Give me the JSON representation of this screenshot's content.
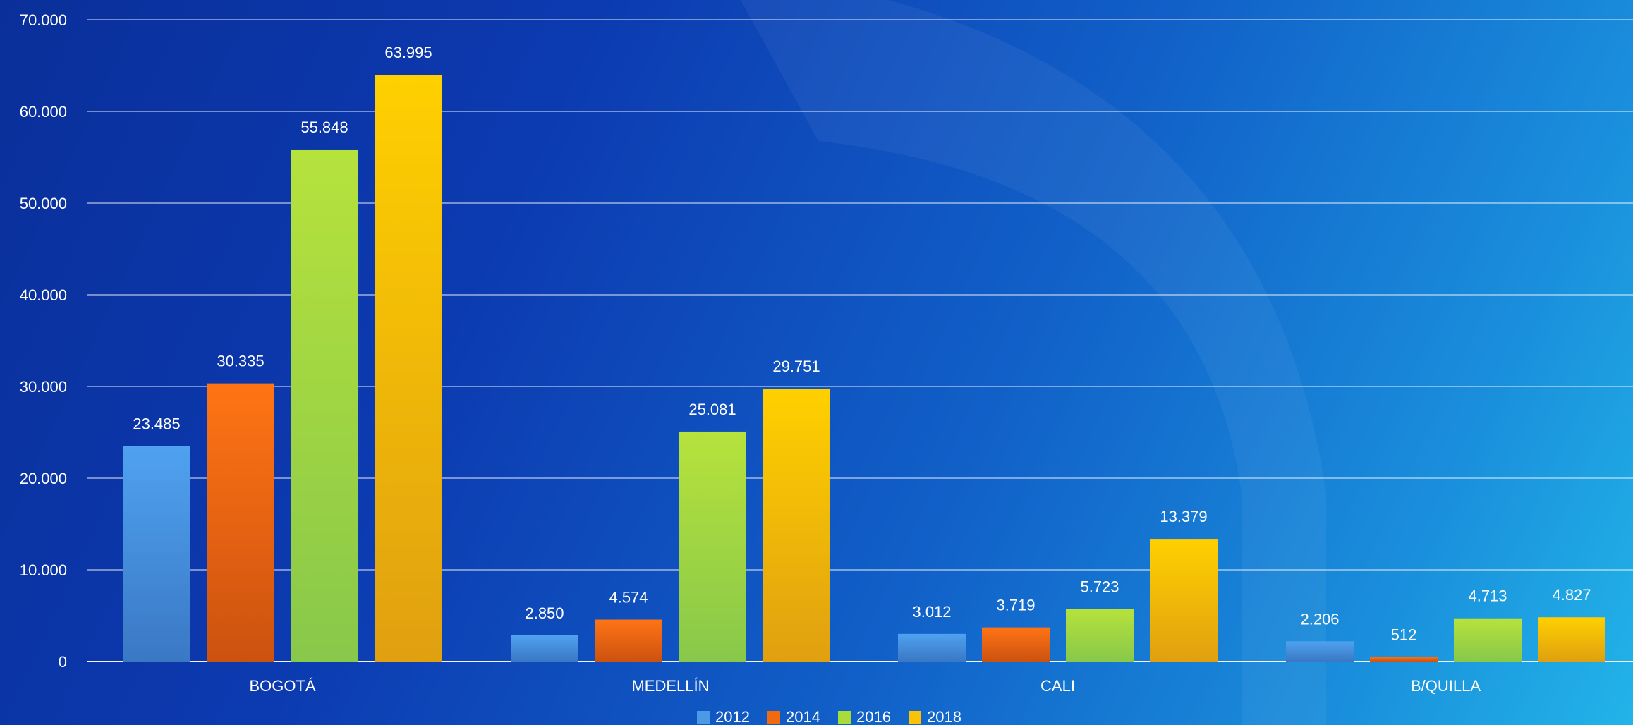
{
  "chart_data": {
    "type": "bar",
    "title": "",
    "xlabel": "",
    "ylabel": "",
    "ylim": [
      0,
      70000
    ],
    "yticks": [
      0,
      10000,
      20000,
      30000,
      40000,
      50000,
      60000,
      70000
    ],
    "ytick_labels": [
      "0",
      "10.000",
      "20.000",
      "30.000",
      "40.000",
      "50.000",
      "60.000",
      "70.000"
    ],
    "categories": [
      "BOGOTÁ",
      "MEDELLÍN",
      "CALI",
      "B/QUILLA"
    ],
    "series": [
      {
        "name": "2012",
        "values": [
          23485,
          2850,
          3012,
          2206
        ],
        "labels": [
          "23.485",
          "2.850",
          "3.012",
          "2.206"
        ],
        "color": "#4a9ae8"
      },
      {
        "name": "2014",
        "values": [
          30335,
          4574,
          3719,
          512
        ],
        "labels": [
          "30.335",
          "4.574",
          "3.719",
          "512"
        ],
        "color": "#f26a10"
      },
      {
        "name": "2016",
        "values": [
          55848,
          25081,
          5723,
          4713
        ],
        "labels": [
          "55.848",
          "25.081",
          "5.723",
          "4.713"
        ],
        "color": "#a8dc3a"
      },
      {
        "name": "2018",
        "values": [
          63995,
          29751,
          13379,
          4827
        ],
        "labels": [
          "63.995",
          "29.751",
          "13.379",
          "4.827"
        ],
        "color": "#fcc20a"
      }
    ],
    "grid": true,
    "legend": "bottom-center"
  }
}
